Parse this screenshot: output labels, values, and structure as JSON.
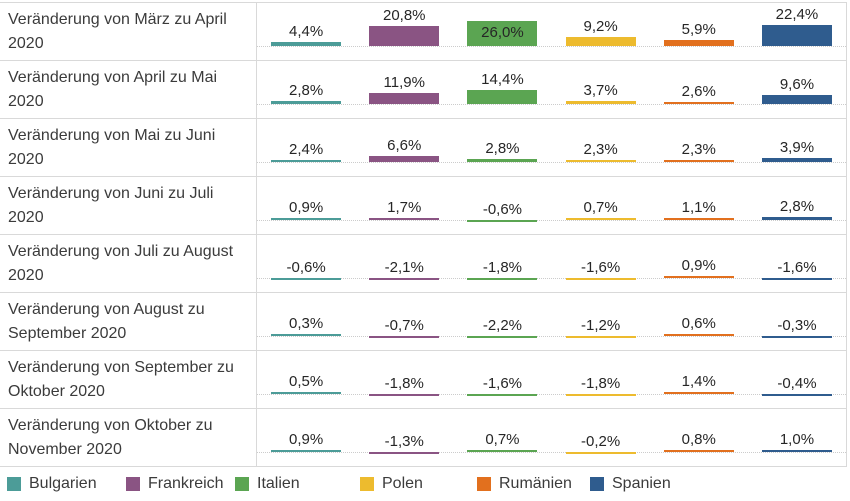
{
  "chart_data": {
    "type": "bar",
    "layout": "small-multiples-rows",
    "unit": "%",
    "decimal_style": "german-comma",
    "categories": [
      "Bulgarien",
      "Frankreich",
      "Italien",
      "Polen",
      "Rumänien",
      "Spanien"
    ],
    "series_colors": [
      "#4C9C98",
      "#8A5483",
      "#5BA552",
      "#EDBB2E",
      "#E2701E",
      "#2F5C8E"
    ],
    "rows": [
      {
        "label": "Veränderung von März zu April 2020",
        "values": [
          4.4,
          20.8,
          26.0,
          9.2,
          5.9,
          22.4
        ],
        "value_labels": [
          "4,4%",
          "20,8%",
          "26,0%",
          "9,2%",
          "5,9%",
          "22,4%"
        ]
      },
      {
        "label": "Veränderung von April zu Mai 2020",
        "values": [
          2.8,
          11.9,
          14.4,
          3.7,
          2.6,
          9.6
        ],
        "value_labels": [
          "2,8%",
          "11,9%",
          "14,4%",
          "3,7%",
          "2,6%",
          "9,6%"
        ]
      },
      {
        "label": "Veränderung von Mai zu Juni 2020",
        "values": [
          2.4,
          6.6,
          2.8,
          2.3,
          2.3,
          3.9
        ],
        "value_labels": [
          "2,4%",
          "6,6%",
          "2,8%",
          "2,3%",
          "2,3%",
          "3,9%"
        ]
      },
      {
        "label": "Veränderung von Juni zu Juli 2020",
        "values": [
          0.9,
          1.7,
          -0.6,
          0.7,
          1.1,
          2.8
        ],
        "value_labels": [
          "0,9%",
          "1,7%",
          "-0,6%",
          "0,7%",
          "1,1%",
          "2,8%"
        ]
      },
      {
        "label": "Veränderung von Juli zu August 2020",
        "values": [
          -0.6,
          -2.1,
          -1.8,
          -1.6,
          0.9,
          -1.6
        ],
        "value_labels": [
          "-0,6%",
          "-2,1%",
          "-1,8%",
          "-1,6%",
          "0,9%",
          "-1,6%"
        ]
      },
      {
        "label": "Veränderung von August zu September 2020",
        "values": [
          0.3,
          -0.7,
          -2.2,
          -1.2,
          0.6,
          -0.3
        ],
        "value_labels": [
          "0,3%",
          "-0,7%",
          "-2,2%",
          "-1,2%",
          "0,6%",
          "-0,3%"
        ]
      },
      {
        "label": "Veränderung von September zu Oktober 2020",
        "values": [
          0.5,
          -1.8,
          -1.6,
          -1.8,
          1.4,
          -0.4
        ],
        "value_labels": [
          "0,5%",
          "-1,8%",
          "-1,6%",
          "-1,8%",
          "1,4%",
          "-0,4%"
        ]
      },
      {
        "label": "Veränderung von Oktober zu November 2020",
        "values": [
          0.9,
          -1.3,
          0.7,
          -0.2,
          0.8,
          1.0
        ],
        "value_labels": [
          "0,9%",
          "-1,3%",
          "0,7%",
          "-0,2%",
          "0,8%",
          "1,0%"
        ]
      }
    ],
    "legend": [
      {
        "name": "Bulgarien",
        "color": "#4C9C98"
      },
      {
        "name": "Frankreich",
        "color": "#8A5483"
      },
      {
        "name": "Italien",
        "color": "#5BA552"
      },
      {
        "name": "Polen",
        "color": "#EDBB2E"
      },
      {
        "name": "Rumänien",
        "color": "#E2701E"
      },
      {
        "name": "Spanien",
        "color": "#2F5C8E"
      }
    ],
    "legend_position": "bottom",
    "axis_ranges": {
      "value_min": -3,
      "value_max": 27
    },
    "grid": "light gray row separators, dotted zero baseline per row, vertical divider after label column"
  }
}
